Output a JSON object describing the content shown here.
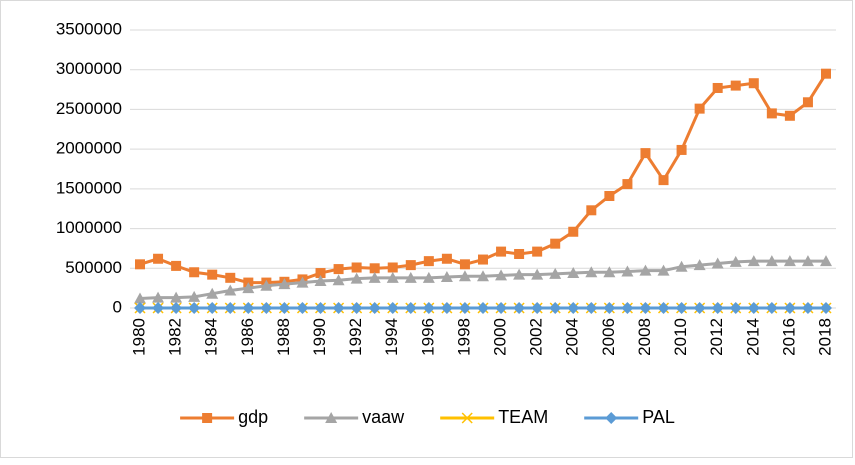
{
  "chart_data": {
    "type": "line",
    "categories": [
      "1980",
      null,
      "1982",
      null,
      "1984",
      null,
      "1986",
      null,
      "1988",
      null,
      "1990",
      null,
      "1992",
      null,
      "1994",
      null,
      "1996",
      null,
      "1998",
      null,
      "2000",
      null,
      "2002",
      null,
      "2004",
      null,
      "2006",
      null,
      "2008",
      null,
      "2010",
      null,
      "2012",
      null,
      "2014",
      null,
      "2016",
      null,
      "2018"
    ],
    "series": [
      {
        "name": "gdp",
        "color": "#ED7D31",
        "marker": "square",
        "values": [
          550000,
          620000,
          530000,
          450000,
          420000,
          380000,
          320000,
          320000,
          330000,
          360000,
          440000,
          490000,
          510000,
          500000,
          510000,
          540000,
          590000,
          620000,
          550000,
          610000,
          710000,
          680000,
          710000,
          810000,
          960000,
          1230000,
          1410000,
          1560000,
          1950000,
          1610000,
          1990000,
          2510000,
          2770000,
          2800000,
          2830000,
          2450000,
          2420000,
          2590000,
          2950000
        ]
      },
      {
        "name": "vaaw",
        "color": "#A5A5A5",
        "marker": "triangle",
        "values": [
          120000,
          130000,
          130000,
          140000,
          180000,
          220000,
          250000,
          280000,
          300000,
          320000,
          340000,
          350000,
          370000,
          380000,
          380000,
          380000,
          380000,
          390000,
          400000,
          400000,
          410000,
          420000,
          420000,
          430000,
          440000,
          450000,
          450000,
          460000,
          470000,
          470000,
          520000,
          540000,
          560000,
          580000,
          590000,
          590000,
          590000,
          590000,
          590000
        ]
      },
      {
        "name": "TEAM",
        "color": "#FFC000",
        "marker": "x",
        "values": [
          0,
          0,
          0,
          0,
          0,
          0,
          0,
          0,
          0,
          0,
          0,
          0,
          0,
          0,
          0,
          0,
          0,
          0,
          0,
          0,
          0,
          0,
          0,
          0,
          0,
          0,
          0,
          0,
          0,
          0,
          0,
          0,
          0,
          0,
          0,
          0,
          0,
          0,
          0
        ]
      },
      {
        "name": "PAL",
        "color": "#5B9BD5",
        "marker": "diamond",
        "values": [
          0,
          0,
          0,
          0,
          0,
          0,
          0,
          0,
          0,
          0,
          0,
          0,
          0,
          0,
          0,
          0,
          0,
          0,
          0,
          0,
          0,
          0,
          0,
          0,
          0,
          0,
          0,
          0,
          0,
          0,
          0,
          0,
          0,
          0,
          0,
          0,
          0,
          0,
          0
        ]
      }
    ],
    "ylim": [
      0,
      3500000
    ],
    "yticks": [
      0,
      500000,
      1000000,
      1500000,
      2000000,
      2500000,
      3000000,
      3500000
    ],
    "grid": true,
    "legend": "bottom"
  }
}
